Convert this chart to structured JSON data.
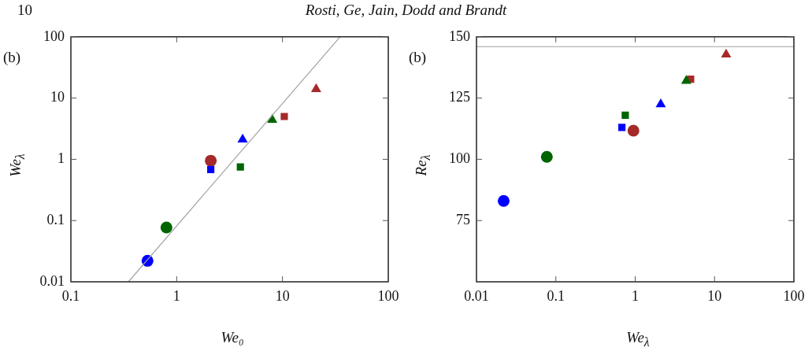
{
  "chart_data": [
    {
      "type": "scatter",
      "title": "(b)",
      "annotations": [
        "10",
        "Rosti, Ge, Jain, Dodd and Brandt"
      ],
      "xlabel": "We₀",
      "ylabel": "We$_{λ}$",
      "log": "xy",
      "grid": false,
      "legend": false,
      "xlim": [
        0.1,
        100
      ],
      "xticks": [
        0.1,
        1,
        10,
        100
      ],
      "ylim": [
        0.01,
        100
      ],
      "yticks": [
        0.01,
        0.1,
        1,
        10,
        100
      ],
      "series": [
        {
          "marker": "circle",
          "x": [
            0.53,
            0.8,
            2.1
          ],
          "values": [
            0.022,
            0.077,
            0.95
          ],
          "colors": [
            "#0000ff",
            "#006400",
            "#a52a2a"
          ]
        },
        {
          "marker": "square",
          "x": [
            2.1,
            4.0,
            10.4
          ],
          "values": [
            0.68,
            0.75,
            5.0
          ],
          "colors": [
            "#0000ff",
            "#006400",
            "#a52a2a"
          ]
        },
        {
          "marker": "triangle",
          "x": [
            4.2,
            8.0,
            20.8
          ],
          "values": [
            2.1,
            4.4,
            14
          ],
          "colors": [
            "#0000ff",
            "#006400",
            "#a52a2a"
          ]
        },
        {
          "type": "line",
          "marker": "none",
          "color": "#a0a0a0",
          "x": [
            0.35,
            35
          ],
          "values": [
            0.01,
            100
          ]
        }
      ]
    },
    {
      "type": "scatter",
      "title": "(b)",
      "xlabel": "We$_{λ}$",
      "ylabel": "Re$_{λ}$",
      "log": "x",
      "grid": false,
      "legend": false,
      "xlim": [
        0.01,
        100
      ],
      "xticks": [
        0.01,
        0.1,
        1,
        10,
        100
      ],
      "ylim": [
        50,
        150
      ],
      "yticks": [
        75,
        100,
        125,
        150
      ],
      "ref_lines": [
        {
          "axis": "y",
          "value": 146,
          "color": "#a0a0a0"
        }
      ],
      "series": [
        {
          "marker": "circle",
          "x": [
            0.022,
            0.077,
            0.95
          ],
          "values": [
            83,
            101,
            111.7
          ],
          "colors": [
            "#0000ff",
            "#006400",
            "#a52a2a"
          ]
        },
        {
          "marker": "square",
          "x": [
            0.68,
            0.75,
            5.0
          ],
          "values": [
            113,
            118,
            132.7
          ],
          "colors": [
            "#0000ff",
            "#006400",
            "#a52a2a"
          ]
        },
        {
          "marker": "triangle",
          "x": [
            2.1,
            4.4,
            14
          ],
          "values": [
            122.5,
            132,
            142.8
          ],
          "colors": [
            "#0000ff",
            "#006400",
            "#a52a2a"
          ]
        }
      ]
    }
  ]
}
